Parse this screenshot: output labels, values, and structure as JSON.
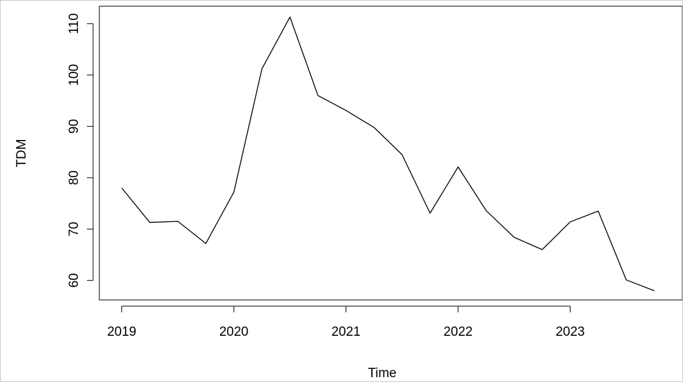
{
  "chart_data": {
    "type": "line",
    "title": "",
    "xlabel": "Time",
    "ylabel": "TDM",
    "x_ticks": [
      2019,
      2020,
      2021,
      2022,
      2023
    ],
    "y_ticks": [
      60,
      70,
      80,
      90,
      100,
      110
    ],
    "x": [
      2019.0,
      2019.25,
      2019.5,
      2019.75,
      2020.0,
      2020.25,
      2020.5,
      2020.75,
      2021.0,
      2021.25,
      2021.5,
      2021.75,
      2022.0,
      2022.25,
      2022.5,
      2022.75,
      2023.0,
      2023.25,
      2023.5,
      2023.75
    ],
    "series": [
      {
        "values": [
          78.0,
          71.3,
          71.5,
          67.2,
          77.2,
          101.2,
          111.3,
          96.0,
          93.1,
          89.8,
          84.5,
          73.1,
          82.1,
          73.6,
          68.4,
          66.0,
          71.4,
          73.5,
          60.1,
          58.0
        ]
      }
    ],
    "xlim": [
      2018.8,
      2024.0
    ],
    "ylim": [
      56.2,
      113.4
    ],
    "grid": false,
    "line_color": "#000000"
  }
}
